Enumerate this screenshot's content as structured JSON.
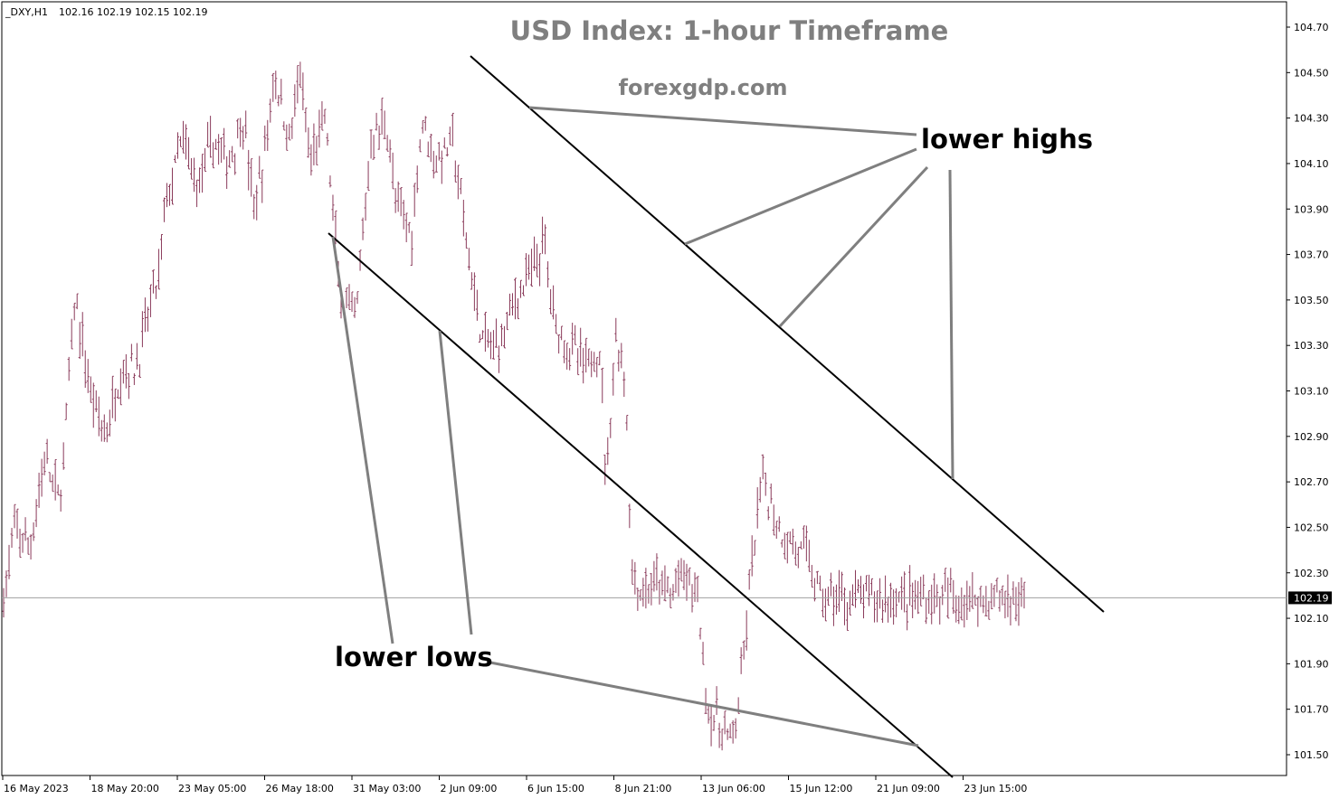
{
  "header": {
    "symbol": "_DXY,H1",
    "ohlc": "102.16 102.19 102.15 102.19"
  },
  "chart_data": {
    "type": "bar",
    "title": "USD Index: 1-hour Timeframe",
    "subtitle": "forexgdp.com",
    "ylim": [
      101.42,
      104.82
    ],
    "y_ticks": [
      "104.70",
      "104.50",
      "104.30",
      "104.10",
      "103.90",
      "103.70",
      "103.50",
      "103.30",
      "103.10",
      "102.90",
      "102.70",
      "102.50",
      "102.30",
      "102.10",
      "101.90",
      "101.70",
      "101.50"
    ],
    "x_ticks": [
      "16 May 2023",
      "18 May 20:00",
      "23 May 05:00",
      "26 May 18:00",
      "31 May 03:00",
      "2 Jun 09:00",
      "6 Jun 15:00",
      "8 Jun 21:00",
      "13 Jun 06:00",
      "15 Jun 12:00",
      "21 Jun 09:00",
      "23 Jun 15:00"
    ],
    "current_price": "102.19",
    "current_price_value": 102.19,
    "price_path": [
      [
        0,
        102.2
      ],
      [
        0.012,
        102.5
      ],
      [
        0.025,
        102.4
      ],
      [
        0.04,
        102.8
      ],
      [
        0.055,
        102.6
      ],
      [
        0.07,
        103.5
      ],
      [
        0.085,
        103.1
      ],
      [
        0.1,
        102.9
      ],
      [
        0.115,
        103.2
      ],
      [
        0.13,
        103.2
      ],
      [
        0.145,
        103.5
      ],
      [
        0.152,
        103.6
      ],
      [
        0.158,
        103.9
      ],
      [
        0.175,
        104.2
      ],
      [
        0.19,
        104.0
      ],
      [
        0.205,
        104.2
      ],
      [
        0.22,
        104.1
      ],
      [
        0.235,
        104.3
      ],
      [
        0.245,
        103.9
      ],
      [
        0.255,
        104.1
      ],
      [
        0.265,
        104.5
      ],
      [
        0.28,
        104.2
      ],
      [
        0.29,
        104.5
      ],
      [
        0.3,
        104.1
      ],
      [
        0.315,
        104.3
      ],
      [
        0.33,
        103.5
      ],
      [
        0.345,
        103.4
      ],
      [
        0.36,
        104.2
      ],
      [
        0.375,
        104.3
      ],
      [
        0.385,
        103.9
      ],
      [
        0.4,
        103.8
      ],
      [
        0.41,
        104.3
      ],
      [
        0.425,
        104.1
      ],
      [
        0.44,
        104.2
      ],
      [
        0.455,
        103.7
      ],
      [
        0.47,
        103.3
      ],
      [
        0.485,
        103.3
      ],
      [
        0.5,
        103.5
      ],
      [
        0.515,
        103.6
      ],
      [
        0.53,
        103.75
      ],
      [
        0.54,
        103.4
      ],
      [
        0.555,
        103.3
      ],
      [
        0.57,
        103.2
      ],
      [
        0.585,
        103.3
      ],
      [
        0.59,
        102.7
      ],
      [
        0.6,
        103.35
      ],
      [
        0.61,
        103.1
      ],
      [
        0.615,
        102.3
      ],
      [
        0.625,
        102.2
      ],
      [
        0.64,
        102.25
      ],
      [
        0.655,
        102.2
      ],
      [
        0.665,
        102.3
      ],
      [
        0.68,
        102.2
      ],
      [
        0.69,
        101.7
      ],
      [
        0.705,
        101.6
      ],
      [
        0.715,
        101.55
      ],
      [
        0.725,
        101.9
      ],
      [
        0.73,
        102.2
      ],
      [
        0.74,
        102.6
      ],
      [
        0.745,
        102.7
      ],
      [
        0.755,
        102.55
      ],
      [
        0.765,
        102.45
      ],
      [
        0.78,
        102.4
      ],
      [
        0.79,
        102.35
      ],
      [
        0.8,
        102.19
      ]
    ],
    "series": [
      {
        "name": "upper channel line",
        "points": [
          [
            "0.365",
            104.62
          ],
          [
            "0.86",
            102.14
          ]
        ]
      },
      {
        "name": "lower channel line",
        "points": [
          [
            "0.255",
            103.78
          ],
          [
            "0.74",
            101.46
          ]
        ]
      }
    ],
    "annotations": {
      "lower_highs": "lower highs",
      "lower_lows": "lower lows"
    }
  },
  "colors": {
    "background": "#ffffff",
    "bars": "#8a3a5a",
    "channel": "#000000",
    "pointer": "#7f7f7f",
    "price_line": "#a0a0a0",
    "price_tag": "#000000"
  }
}
